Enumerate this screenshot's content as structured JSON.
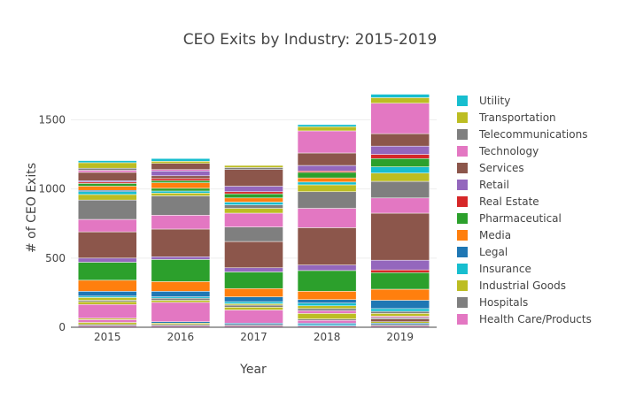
{
  "chart_data": {
    "type": "bar",
    "stacked": true,
    "title": "CEO Exits by Industry: 2015-2019",
    "xlabel": "Year",
    "ylabel": "# of CEO Exits",
    "categories": [
      "2015",
      "2016",
      "2017",
      "2018",
      "2019"
    ],
    "ylim": [
      0,
      1650
    ],
    "yticks": [
      0,
      500,
      1000,
      1500
    ],
    "grid": true,
    "legend_position": "right",
    "series": [
      {
        "name": "Health Care/Products",
        "color": "#e377c2",
        "values": [
          0,
          0,
          0,
          0,
          0
        ]
      },
      {
        "name": "Hospitals",
        "color": "#7f7f7f",
        "values": [
          0,
          0,
          0,
          0,
          0
        ]
      },
      {
        "name": "Industrial Goods",
        "color": "#bcbd22",
        "values": [
          0,
          0,
          0,
          0,
          0
        ]
      },
      {
        "name": "Insurance",
        "color": "#17becf",
        "values": [
          0,
          0,
          0,
          0,
          0
        ]
      },
      {
        "name": "Legal",
        "color": "#1f77b4",
        "values": [
          0,
          0,
          0,
          0,
          0
        ]
      },
      {
        "name": "Media",
        "color": "#ff7f0e",
        "values": [
          0,
          0,
          0,
          0,
          0
        ]
      },
      {
        "name": "Pharmaceutical",
        "color": "#2ca02c",
        "values": [
          0,
          0,
          0,
          0,
          0
        ]
      },
      {
        "name": "Real Estate",
        "color": "#d62728",
        "values": [
          0,
          0,
          0,
          0,
          0
        ]
      },
      {
        "name": "Retail",
        "color": "#9467bd",
        "values": [
          0,
          0,
          0,
          0,
          0
        ]
      },
      {
        "name": "Services",
        "color": "#8c564b",
        "values": [
          0,
          0,
          0,
          0,
          0
        ]
      },
      {
        "name": "Technology",
        "color": "#e377c2",
        "values": [
          0,
          0,
          0,
          0,
          0
        ]
      },
      {
        "name": "Telecommunications",
        "color": "#7f7f7f",
        "values": [
          0,
          0,
          0,
          0,
          0
        ]
      },
      {
        "name": "Transportation",
        "color": "#bcbd22",
        "values": [
          0,
          0,
          0,
          0,
          0
        ]
      },
      {
        "name": "Utility",
        "color": "#17becf",
        "values": [
          0,
          0,
          0,
          0,
          0
        ]
      }
    ],
    "segments": [
      {
        "category": "2015",
        "stack": [
          {
            "industry": "Health Care/Products",
            "value": 10
          },
          {
            "industry": "Hospitals",
            "value": 10
          },
          {
            "industry": "Industrial Goods",
            "value": 15
          },
          {
            "industry": "Health Care/Products",
            "value": 20
          },
          {
            "industry": "Industrial Goods",
            "value": 10
          },
          {
            "industry": "Health Care/Products",
            "value": 100
          },
          {
            "industry": "Industrial Goods",
            "value": 20
          },
          {
            "industry": "Hospitals",
            "value": 10
          },
          {
            "industry": "Industrial Goods",
            "value": 20
          },
          {
            "industry": "Insurance",
            "value": 10
          },
          {
            "industry": "Legal",
            "value": 35
          },
          {
            "industry": "Media",
            "value": 80
          },
          {
            "industry": "Pharmaceutical",
            "value": 130
          },
          {
            "industry": "Retail",
            "value": 30
          },
          {
            "industry": "Services",
            "value": 190
          },
          {
            "industry": "Technology",
            "value": 90
          },
          {
            "industry": "Telecommunications",
            "value": 140
          },
          {
            "industry": "Transportation",
            "value": 40
          },
          {
            "industry": "Insurance",
            "value": 20
          },
          {
            "industry": "Legal",
            "value": 10
          },
          {
            "industry": "Media",
            "value": 30
          },
          {
            "industry": "Pharmaceutical",
            "value": 20
          },
          {
            "industry": "Real Estate",
            "value": 10
          },
          {
            "industry": "Retail",
            "value": 10
          },
          {
            "industry": "Services",
            "value": 60
          },
          {
            "industry": "Technology",
            "value": 15
          },
          {
            "industry": "Telecommunications",
            "value": 15
          },
          {
            "industry": "Transportation",
            "value": 40
          },
          {
            "industry": "Utility",
            "value": 15
          }
        ]
      },
      {
        "category": "2016",
        "stack": [
          {
            "industry": "Health Care/Products",
            "value": 10
          },
          {
            "industry": "Hospitals",
            "value": 10
          },
          {
            "industry": "Industrial Goods",
            "value": 10
          },
          {
            "industry": "Legal",
            "value": 10
          },
          {
            "industry": "Health Care/Products",
            "value": 140
          },
          {
            "industry": "Industrial Goods",
            "value": 15
          },
          {
            "industry": "Hospitals",
            "value": 15
          },
          {
            "industry": "Insurance",
            "value": 10
          },
          {
            "industry": "Legal",
            "value": 40
          },
          {
            "industry": "Media",
            "value": 70
          },
          {
            "industry": "Pharmaceutical",
            "value": 160
          },
          {
            "industry": "Retail",
            "value": 20
          },
          {
            "industry": "Services",
            "value": 200
          },
          {
            "industry": "Technology",
            "value": 100
          },
          {
            "industry": "Telecommunications",
            "value": 140
          },
          {
            "industry": "Industrial Goods",
            "value": 20
          },
          {
            "industry": "Insurance",
            "value": 15
          },
          {
            "industry": "Pharmaceutical",
            "value": 20
          },
          {
            "industry": "Media",
            "value": 40
          },
          {
            "industry": "Pharmaceutical",
            "value": 15
          },
          {
            "industry": "Real Estate",
            "value": 15
          },
          {
            "industry": "Services",
            "value": 20
          },
          {
            "industry": "Retail",
            "value": 35
          },
          {
            "industry": "Technology",
            "value": 10
          },
          {
            "industry": "Services",
            "value": 45
          },
          {
            "industry": "Transportation",
            "value": 15
          },
          {
            "industry": "Insurance",
            "value": 20
          }
        ]
      },
      {
        "category": "2017",
        "stack": [
          {
            "industry": "Health Care/Products",
            "value": 10
          },
          {
            "industry": "Hospitals",
            "value": 10
          },
          {
            "industry": "Legal",
            "value": 10
          },
          {
            "industry": "Health Care/Products",
            "value": 95
          },
          {
            "industry": "Industrial Goods",
            "value": 20
          },
          {
            "industry": "Hospitals",
            "value": 15
          },
          {
            "industry": "Industrial Goods",
            "value": 10
          },
          {
            "industry": "Insurance",
            "value": 15
          },
          {
            "industry": "Legal",
            "value": 35
          },
          {
            "industry": "Media",
            "value": 60
          },
          {
            "industry": "Pharmaceutical",
            "value": 120
          },
          {
            "industry": "Retail",
            "value": 30
          },
          {
            "industry": "Services",
            "value": 190
          },
          {
            "industry": "Telecommunications",
            "value": 105
          },
          {
            "industry": "Technology",
            "value": 100
          },
          {
            "industry": "Industrial Goods",
            "value": 35
          },
          {
            "industry": "Hospitals",
            "value": 25
          },
          {
            "industry": "Insurance",
            "value": 20
          },
          {
            "industry": "Media",
            "value": 30
          },
          {
            "industry": "Pharmaceutical",
            "value": 30
          },
          {
            "industry": "Real Estate",
            "value": 15
          },
          {
            "industry": "Retail",
            "value": 40
          },
          {
            "industry": "Services",
            "value": 120
          },
          {
            "industry": "Telecommunications",
            "value": 15
          },
          {
            "industry": "Transportation",
            "value": 15
          }
        ]
      },
      {
        "category": "2018",
        "stack": [
          {
            "industry": "Health Care/Products",
            "value": 10
          },
          {
            "industry": "Insurance",
            "value": 10
          },
          {
            "industry": "Legal",
            "value": 10
          },
          {
            "industry": "Health Care/Products",
            "value": 20
          },
          {
            "industry": "Hospitals",
            "value": 10
          },
          {
            "industry": "Industrial Goods",
            "value": 40
          },
          {
            "industry": "Health Care/Products",
            "value": 20
          },
          {
            "industry": "Hospitals",
            "value": 15
          },
          {
            "industry": "Industrial Goods",
            "value": 20
          },
          {
            "industry": "Insurance",
            "value": 20
          },
          {
            "industry": "Legal",
            "value": 25
          },
          {
            "industry": "Media",
            "value": 60
          },
          {
            "industry": "Pharmaceutical",
            "value": 150
          },
          {
            "industry": "Retail",
            "value": 40
          },
          {
            "industry": "Services",
            "value": 270
          },
          {
            "industry": "Technology",
            "value": 140
          },
          {
            "industry": "Telecommunications",
            "value": 120
          },
          {
            "industry": "Industrial Goods",
            "value": 50
          },
          {
            "industry": "Insurance",
            "value": 20
          },
          {
            "industry": "Media",
            "value": 30
          },
          {
            "industry": "Pharmaceutical",
            "value": 40
          },
          {
            "industry": "Real Estate",
            "value": 10
          },
          {
            "industry": "Retail",
            "value": 40
          },
          {
            "industry": "Services",
            "value": 90
          },
          {
            "industry": "Technology",
            "value": 160
          },
          {
            "industry": "Transportation",
            "value": 30
          },
          {
            "industry": "Insurance",
            "value": 15
          }
        ]
      },
      {
        "category": "2019",
        "stack": [
          {
            "industry": "Health Care/Products",
            "value": 10
          },
          {
            "industry": "Hospitals",
            "value": 10
          },
          {
            "industry": "Legal",
            "value": 10
          },
          {
            "industry": "Industrial Goods",
            "value": 10
          },
          {
            "industry": "Services",
            "value": 20
          },
          {
            "industry": "Hospitals",
            "value": 10
          },
          {
            "industry": "Health Care/Products",
            "value": 10
          },
          {
            "industry": "Industrial Goods",
            "value": 20
          },
          {
            "industry": "Hospitals",
            "value": 15
          },
          {
            "industry": "Insurance",
            "value": 20
          },
          {
            "industry": "Legal",
            "value": 60
          },
          {
            "industry": "Media",
            "value": 80
          },
          {
            "industry": "Pharmaceutical",
            "value": 120
          },
          {
            "industry": "Real Estate",
            "value": 20
          },
          {
            "industry": "Retail",
            "value": 70
          },
          {
            "industry": "Services",
            "value": 340
          },
          {
            "industry": "Technology",
            "value": 110
          },
          {
            "industry": "Telecommunications",
            "value": 120
          },
          {
            "industry": "Industrial Goods",
            "value": 60
          },
          {
            "industry": "Insurance",
            "value": 45
          },
          {
            "industry": "Pharmaceutical",
            "value": 60
          },
          {
            "industry": "Real Estate",
            "value": 30
          },
          {
            "industry": "Retail",
            "value": 60
          },
          {
            "industry": "Services",
            "value": 90
          },
          {
            "industry": "Technology",
            "value": 220
          },
          {
            "industry": "Transportation",
            "value": 40
          },
          {
            "industry": "Insurance",
            "value": 25
          }
        ]
      }
    ]
  }
}
